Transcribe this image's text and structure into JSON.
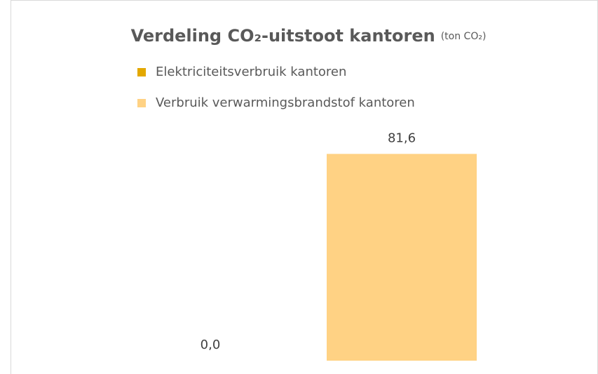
{
  "chart_data": {
    "type": "bar",
    "title": "Verdeling CO₂-uitstoot kantoren",
    "subtitle": "(ton CO₂)",
    "categories": [
      null
    ],
    "series": [
      {
        "name": "Elektriciteitsverbruik kantoren",
        "color": "#e3a800",
        "values": [
          0.0
        ],
        "value_labels": [
          "0,0"
        ]
      },
      {
        "name": "Verbruik verwarmingsbrandstof kantoren",
        "color": "#ffd284",
        "values": [
          81.6
        ],
        "value_labels": [
          "81,6"
        ]
      }
    ],
    "ylim": [
      0,
      90
    ],
    "legend": "top"
  }
}
